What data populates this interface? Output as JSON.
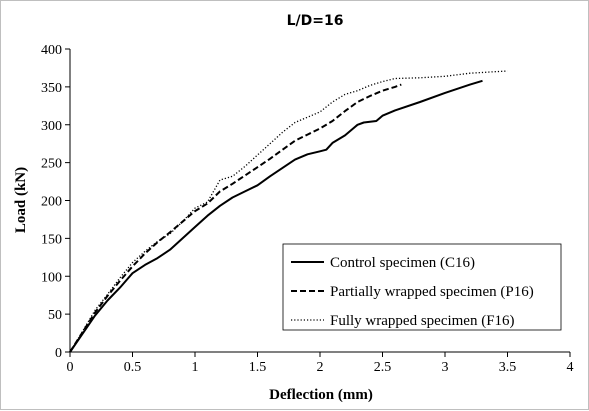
{
  "chart_data": {
    "type": "line",
    "title": "L/D=16",
    "xlabel": "Deflection  (mm)",
    "ylabel": "Load (kN)",
    "xlim": [
      0,
      4
    ],
    "ylim": [
      0,
      400
    ],
    "xticks": [
      "0",
      "0.5",
      "1",
      "1.5",
      "2",
      "2.5",
      "3",
      "3.5",
      "4"
    ],
    "yticks": [
      "0",
      "50",
      "100",
      "150",
      "200",
      "250",
      "300",
      "350",
      "400"
    ],
    "grid": false,
    "legend_position": "bottom-right",
    "series": [
      {
        "name": "Control specimen (C16)",
        "style": "solid",
        "color": "#000000",
        "x": [
          0,
          0.1,
          0.2,
          0.3,
          0.4,
          0.5,
          0.6,
          0.7,
          0.8,
          0.9,
          1.0,
          1.1,
          1.2,
          1.3,
          1.4,
          1.5,
          1.6,
          1.7,
          1.8,
          1.9,
          2.0,
          2.05,
          2.1,
          2.2,
          2.3,
          2.35,
          2.45,
          2.5,
          2.6,
          2.8,
          3.0,
          3.2,
          3.3
        ],
        "y": [
          0,
          24,
          48,
          68,
          85,
          104,
          115,
          124,
          135,
          150,
          165,
          180,
          193,
          204,
          212,
          220,
          232,
          243,
          254,
          261,
          265,
          267,
          276,
          286,
          300,
          303,
          305,
          312,
          319,
          330,
          342,
          353,
          358
        ]
      },
      {
        "name": "Partially wrapped specimen (P16)",
        "style": "dashed",
        "color": "#000000",
        "x": [
          0,
          0.1,
          0.2,
          0.3,
          0.4,
          0.5,
          0.6,
          0.7,
          0.8,
          0.9,
          1.0,
          1.1,
          1.2,
          1.3,
          1.4,
          1.5,
          1.6,
          1.7,
          1.8,
          1.9,
          2.0,
          2.1,
          2.2,
          2.3,
          2.4,
          2.5,
          2.6,
          2.65
        ],
        "y": [
          0,
          26,
          52,
          74,
          94,
          113,
          130,
          145,
          158,
          172,
          186,
          196,
          212,
          222,
          233,
          244,
          255,
          267,
          279,
          287,
          295,
          305,
          318,
          330,
          338,
          345,
          350,
          353
        ]
      },
      {
        "name": "Fully wrapped specimen (F16)",
        "style": "dotted",
        "color": "#000000",
        "x": [
          0,
          0.1,
          0.2,
          0.3,
          0.4,
          0.5,
          0.6,
          0.7,
          0.8,
          0.9,
          1.0,
          1.1,
          1.2,
          1.3,
          1.4,
          1.5,
          1.6,
          1.7,
          1.8,
          1.9,
          2.0,
          2.1,
          2.2,
          2.3,
          2.4,
          2.5,
          2.6,
          2.8,
          3.0,
          3.2,
          3.4,
          3.5
        ],
        "y": [
          0,
          27,
          55,
          76,
          98,
          118,
          133,
          146,
          156,
          172,
          190,
          198,
          227,
          232,
          245,
          260,
          275,
          290,
          303,
          310,
          317,
          330,
          340,
          345,
          352,
          357,
          361,
          362,
          364,
          368,
          370,
          371
        ]
      }
    ]
  }
}
